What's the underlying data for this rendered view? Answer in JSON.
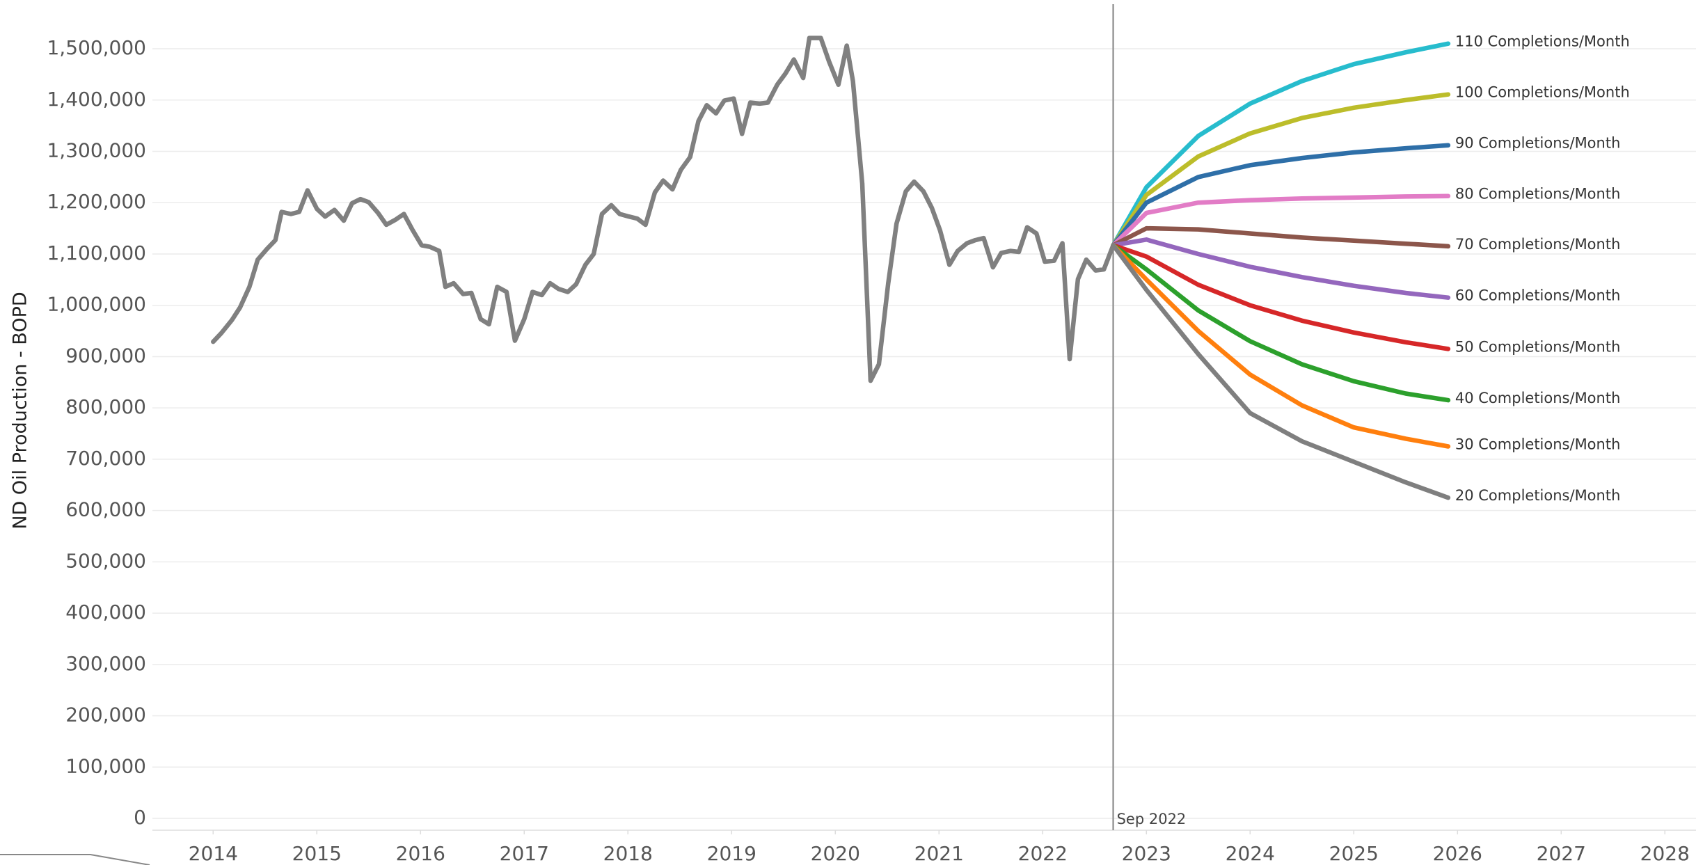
{
  "chart_data": {
    "type": "line",
    "ylabel": "ND Oil Production - BOPD",
    "xlim": [
      2013.26,
      2028.3
    ],
    "ylim": [
      -23000,
      1595000
    ],
    "xticks": [
      2014,
      2015,
      2016,
      2017,
      2018,
      2019,
      2020,
      2021,
      2022,
      2023,
      2024,
      2025,
      2026,
      2027,
      2028
    ],
    "yticks": [
      0,
      {
        "value": 100000,
        "label": "100,000"
      },
      {
        "value": 200000,
        "label": "200,000"
      },
      {
        "value": 300000,
        "label": "300,000"
      },
      {
        "value": 400000,
        "label": "400,000"
      },
      {
        "value": 500000,
        "label": "500,000"
      },
      {
        "value": 600000,
        "label": "600,000"
      },
      {
        "value": 700000,
        "label": "700,000"
      },
      {
        "value": 800000,
        "label": "800,000"
      },
      {
        "value": 900000,
        "label": "900,000"
      },
      {
        "value": 1000000,
        "label": "1,000,000"
      },
      {
        "value": 1100000,
        "label": "1,100,000"
      },
      {
        "value": 1200000,
        "label": "1,200,000"
      },
      {
        "value": 1300000,
        "label": "1,300,000"
      },
      {
        "value": 1400000,
        "label": "1,400,000"
      },
      {
        "value": 1500000,
        "label": "1,500,000"
      }
    ],
    "grid": true,
    "annotations": [
      {
        "x": 2022.68,
        "label": "Sep 2022"
      }
    ],
    "series": [
      {
        "color": "#808080",
        "x": [
          2014.0,
          2014.08,
          2014.18,
          2014.26,
          2014.35,
          2014.43,
          2014.52,
          2014.6,
          2014.66,
          2014.75,
          2014.83,
          2014.91,
          2015.0,
          2015.08,
          2015.17,
          2015.26,
          2015.34,
          2015.42,
          2015.5,
          2015.59,
          2015.67,
          2015.76,
          2015.84,
          2015.92,
          2016.01,
          2016.09,
          2016.18,
          2016.24,
          2016.32,
          2016.41,
          2016.49,
          2016.58,
          2016.66,
          2016.74,
          2016.83,
          2016.91,
          2017.0,
          2017.08,
          2017.17,
          2017.25,
          2017.33,
          2017.42,
          2017.5,
          2017.59,
          2017.67,
          2017.75,
          2017.84,
          2017.92,
          2018.01,
          2018.09,
          2018.17,
          2018.26,
          2018.34,
          2018.43,
          2018.51,
          2018.6,
          2018.68,
          2018.76,
          2018.85,
          2018.93,
          2019.02,
          2019.1,
          2019.18,
          2019.27,
          2019.35,
          2019.44,
          2019.52,
          2019.6,
          2019.69,
          2019.75,
          2019.86,
          2019.94,
          2020.03,
          2020.11,
          2020.17,
          2020.26,
          2020.34,
          2020.42,
          2020.51,
          2020.59,
          2020.68,
          2020.76,
          2020.85,
          2020.93,
          2021.01,
          2021.1,
          2021.18,
          2021.27,
          2021.35,
          2021.43,
          2021.52,
          2021.6,
          2021.69,
          2021.77,
          2021.85,
          2021.94,
          2022.02,
          2022.11,
          2022.19,
          2022.26,
          2022.34,
          2022.42,
          2022.51,
          2022.59,
          2022.68
        ],
        "values": [
          929000,
          946000,
          971000,
          996000,
          1036000,
          1089000,
          1110000,
          1127000,
          1182000,
          1178000,
          1182000,
          1224000,
          1188000,
          1173000,
          1186000,
          1165000,
          1199000,
          1207000,
          1201000,
          1180000,
          1157000,
          1167000,
          1178000,
          1148000,
          1117000,
          1114000,
          1106000,
          1036000,
          1043000,
          1022000,
          1024000,
          973000,
          963000,
          1036000,
          1026000,
          931000,
          973000,
          1026000,
          1020000,
          1043000,
          1032000,
          1026000,
          1041000,
          1079000,
          1100000,
          1178000,
          1195000,
          1178000,
          1173000,
          1169000,
          1157000,
          1220000,
          1243000,
          1226000,
          1264000,
          1289000,
          1359000,
          1390000,
          1374000,
          1399000,
          1403000,
          1334000,
          1395000,
          1393000,
          1395000,
          1430000,
          1452000,
          1479000,
          1443000,
          1521000,
          1521000,
          1475000,
          1430000,
          1506000,
          1437000,
          1237000,
          853000,
          885000,
          1043000,
          1159000,
          1222000,
          1241000,
          1222000,
          1190000,
          1146000,
          1079000,
          1106000,
          1121000,
          1127000,
          1131000,
          1074000,
          1102000,
          1106000,
          1104000,
          1152000,
          1140000,
          1085000,
          1087000,
          1121000,
          895000,
          1051000,
          1089000,
          1068000,
          1070000,
          1117000
        ]
      },
      {
        "name": "110 Completions/Month",
        "color": "#27bccd",
        "x": [
          2022.68,
          2023,
          2023.5,
          2024,
          2024.5,
          2025,
          2025.5,
          2025.91
        ],
        "values": [
          1117000,
          1230000,
          1330000,
          1393000,
          1437000,
          1470000,
          1493000,
          1510000
        ]
      },
      {
        "name": "100 Completions/Month",
        "color": "#bcbd2a",
        "x": [
          2022.68,
          2023,
          2023.5,
          2024,
          2024.5,
          2025,
          2025.5,
          2025.91
        ],
        "values": [
          1117000,
          1215000,
          1290000,
          1335000,
          1365000,
          1385000,
          1400000,
          1411000
        ]
      },
      {
        "name": "90 Completions/Month",
        "color": "#2e6fa8",
        "x": [
          2022.68,
          2023,
          2023.5,
          2024,
          2024.5,
          2025,
          2025.5,
          2025.91
        ],
        "values": [
          1117000,
          1200000,
          1250000,
          1273000,
          1287000,
          1298000,
          1306000,
          1312000
        ]
      },
      {
        "name": "80 Completions/Month",
        "color": "#e27cc6",
        "x": [
          2022.68,
          2023,
          2023.5,
          2024,
          2024.5,
          2025,
          2025.5,
          2025.91
        ],
        "values": [
          1117000,
          1180000,
          1200000,
          1205000,
          1208000,
          1210000,
          1212000,
          1213000
        ]
      },
      {
        "name": "70 Completions/Month",
        "color": "#8c564b",
        "x": [
          2022.68,
          2023,
          2023.5,
          2024,
          2024.5,
          2025,
          2025.5,
          2025.91
        ],
        "values": [
          1117000,
          1150000,
          1148000,
          1140000,
          1132000,
          1126000,
          1120000,
          1115000
        ]
      },
      {
        "name": "60 Completions/Month",
        "color": "#9467bd",
        "x": [
          2022.68,
          2023,
          2023.5,
          2024,
          2024.5,
          2025,
          2025.5,
          2025.91
        ],
        "values": [
          1117000,
          1128000,
          1100000,
          1075000,
          1055000,
          1038000,
          1024000,
          1015000
        ]
      },
      {
        "name": "50 Completions/Month",
        "color": "#d62728",
        "x": [
          2022.68,
          2023,
          2023.5,
          2024,
          2024.5,
          2025,
          2025.5,
          2025.91
        ],
        "values": [
          1117000,
          1095000,
          1040000,
          1000000,
          970000,
          947000,
          928000,
          915000
        ]
      },
      {
        "name": "40 Completions/Month",
        "color": "#2ca02c",
        "x": [
          2022.68,
          2023,
          2023.5,
          2024,
          2024.5,
          2025,
          2025.5,
          2025.91
        ],
        "values": [
          1117000,
          1070000,
          990000,
          930000,
          885000,
          852000,
          828000,
          815000
        ]
      },
      {
        "name": "30 Completions/Month",
        "color": "#ff7f0e",
        "x": [
          2022.68,
          2023,
          2023.5,
          2024,
          2024.5,
          2025,
          2025.5,
          2025.91
        ],
        "values": [
          1117000,
          1050000,
          950000,
          865000,
          805000,
          762000,
          740000,
          725000
        ]
      },
      {
        "name": "20 Completions/Month",
        "color": "#7f7f7f",
        "x": [
          2022.68,
          2023,
          2023.5,
          2024,
          2024.5,
          2025,
          2025.5,
          2025.91
        ],
        "values": [
          1117000,
          1030000,
          905000,
          790000,
          735000,
          695000,
          655000,
          625000
        ]
      }
    ]
  }
}
